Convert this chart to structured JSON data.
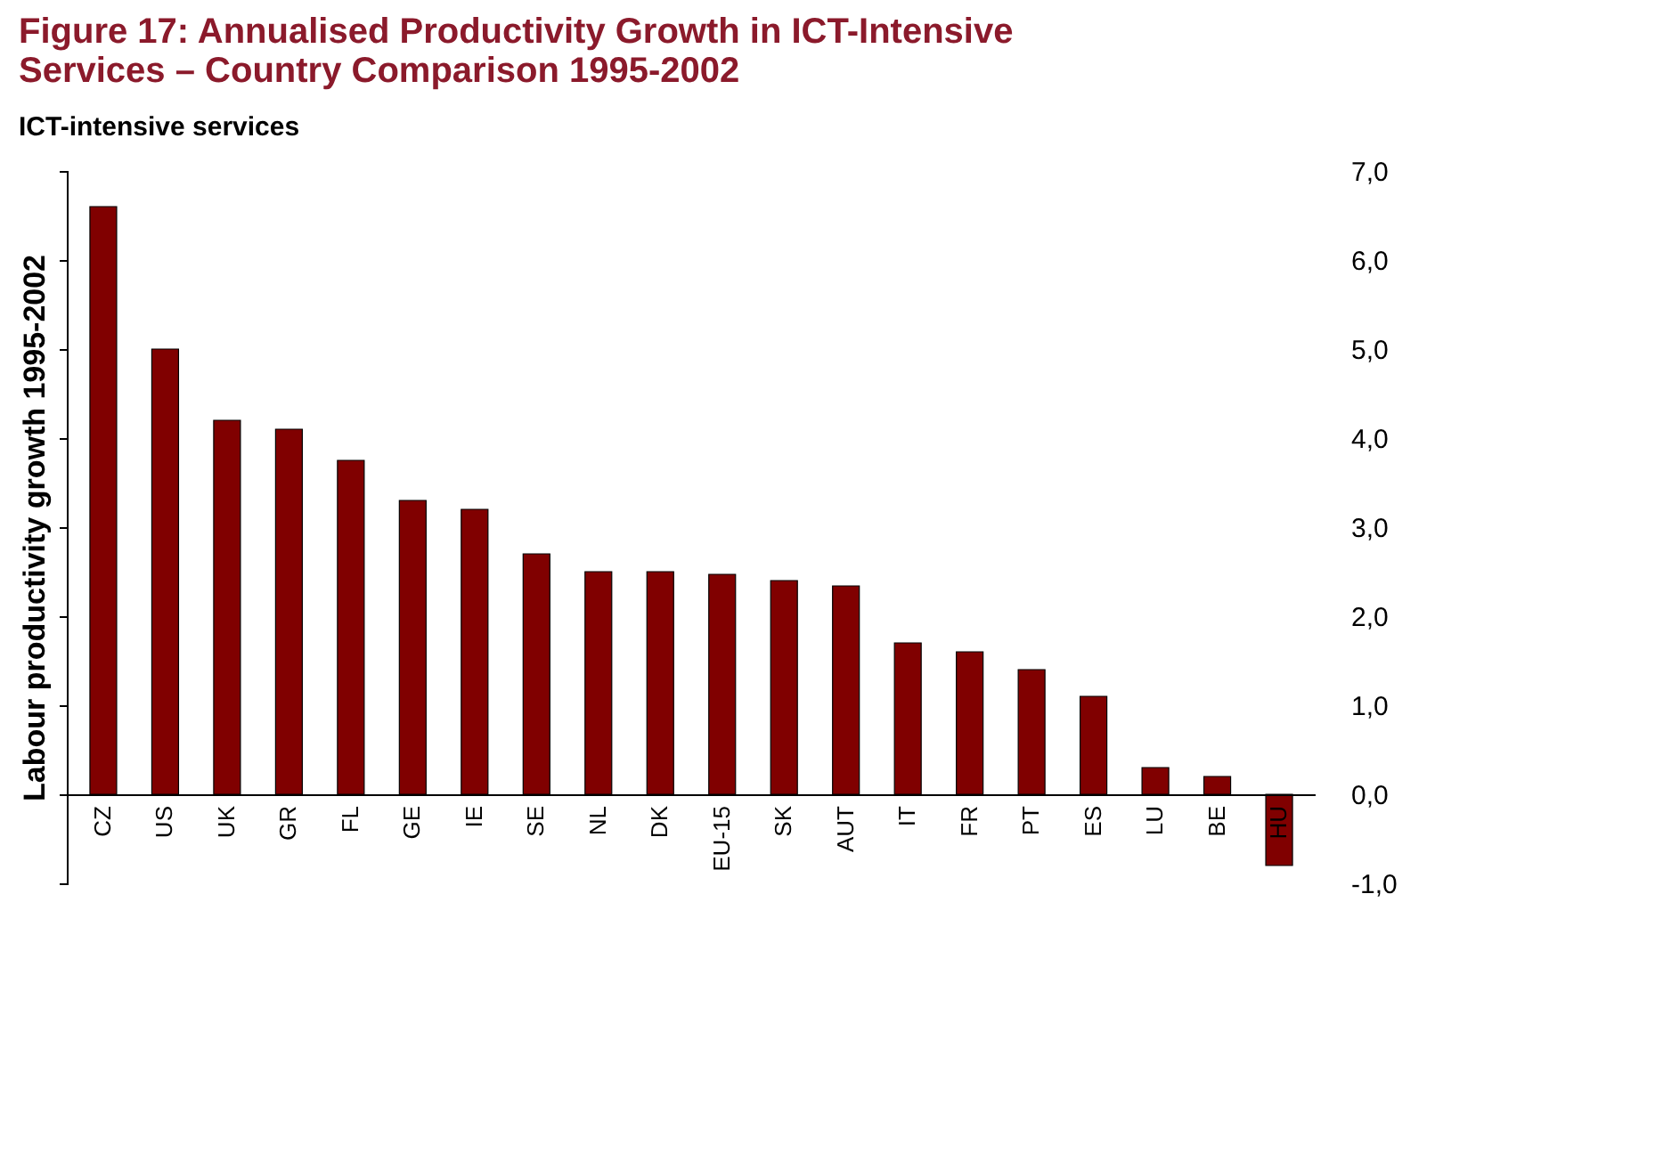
{
  "chart_data": {
    "type": "bar",
    "title": "Figure 17: Annualised Productivity Growth in ICT-Intensive Services – Country Comparison 1995-2002",
    "subtitle": "ICT-intensive services",
    "ylabel": "Labour productivity growth 1995-2002",
    "categories": [
      "CZ",
      "US",
      "UK",
      "GR",
      "FL",
      "GE",
      "IE",
      "SE",
      "NL",
      "DK",
      "EU-15",
      "SK",
      "AUT",
      "IT",
      "FR",
      "PT",
      "ES",
      "LU",
      "BE",
      "HU"
    ],
    "values": [
      6.6,
      5.0,
      4.2,
      4.1,
      3.75,
      3.3,
      3.2,
      2.7,
      2.5,
      2.5,
      2.47,
      2.4,
      2.34,
      1.7,
      1.6,
      1.4,
      1.1,
      0.3,
      0.2,
      -0.8
    ],
    "color": "#800000",
    "ylim": [
      -1,
      7
    ],
    "yticks": [
      {
        "value": -1,
        "label": "-1,0"
      },
      {
        "value": 0,
        "label": "0,0"
      },
      {
        "value": 1,
        "label": "1,0"
      },
      {
        "value": 2,
        "label": "2,0"
      },
      {
        "value": 3,
        "label": "3,0"
      },
      {
        "value": 4,
        "label": "4,0"
      },
      {
        "value": 5,
        "label": "5,0"
      },
      {
        "value": 6,
        "label": "6,0"
      },
      {
        "value": 7,
        "label": "7,0"
      }
    ],
    "grid": false
  }
}
